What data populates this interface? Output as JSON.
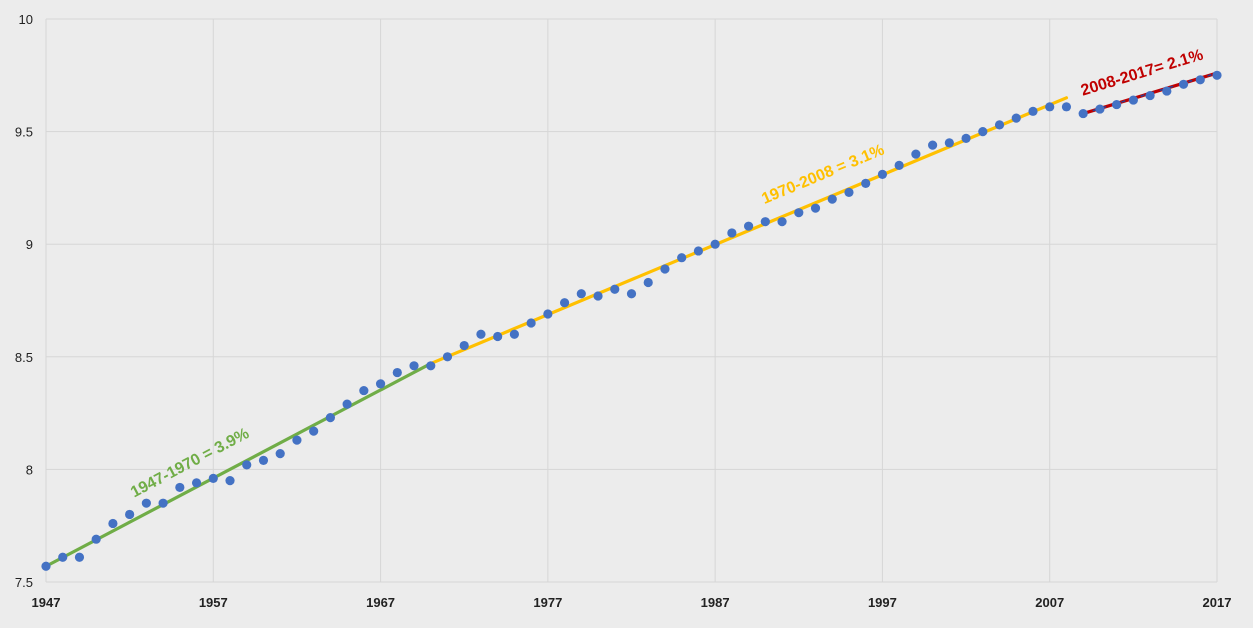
{
  "chart_data": {
    "type": "scatter",
    "title": "",
    "xlabel": "",
    "ylabel": "",
    "xlim": [
      1947,
      2017
    ],
    "ylim": [
      7.5,
      10
    ],
    "x_ticks": [
      1947,
      1957,
      1967,
      1977,
      1987,
      1997,
      2007,
      2017
    ],
    "y_ticks": [
      7.5,
      8,
      8.5,
      9,
      9.5,
      10
    ],
    "y_tick_labels": [
      "7.5",
      "8",
      "8.5",
      "9",
      "9.5",
      "10"
    ],
    "grid": true,
    "series": [
      {
        "color": "#4472c4",
        "x": [
          1947,
          1948,
          1949,
          1950,
          1951,
          1952,
          1953,
          1954,
          1955,
          1956,
          1957,
          1958,
          1959,
          1960,
          1961,
          1962,
          1963,
          1964,
          1965,
          1966,
          1967,
          1968,
          1969,
          1970,
          1971,
          1972,
          1973,
          1974,
          1975,
          1976,
          1977,
          1978,
          1979,
          1980,
          1981,
          1982,
          1983,
          1984,
          1985,
          1986,
          1987,
          1988,
          1989,
          1990,
          1991,
          1992,
          1993,
          1994,
          1995,
          1996,
          1997,
          1998,
          1999,
          2000,
          2001,
          2002,
          2003,
          2004,
          2005,
          2006,
          2007,
          2008,
          2009,
          2010,
          2011,
          2012,
          2013,
          2014,
          2015,
          2016,
          2017
        ],
        "y": [
          7.57,
          7.61,
          7.61,
          7.69,
          7.76,
          7.8,
          7.85,
          7.85,
          7.92,
          7.94,
          7.96,
          7.95,
          8.02,
          8.04,
          8.07,
          8.13,
          8.17,
          8.23,
          8.29,
          8.35,
          8.38,
          8.43,
          8.46,
          8.46,
          8.5,
          8.55,
          8.6,
          8.59,
          8.6,
          8.65,
          8.69,
          8.74,
          8.78,
          8.77,
          8.8,
          8.78,
          8.83,
          8.89,
          8.94,
          8.97,
          9.0,
          9.05,
          9.08,
          9.1,
          9.1,
          9.14,
          9.16,
          9.2,
          9.23,
          9.27,
          9.31,
          9.35,
          9.4,
          9.44,
          9.45,
          9.47,
          9.5,
          9.53,
          9.56,
          9.59,
          9.61,
          9.61,
          9.58,
          9.6,
          9.62,
          9.64,
          9.66,
          9.68,
          9.71,
          9.73,
          9.75
        ]
      }
    ],
    "trendlines": [
      {
        "label": "1947-1970 = 3.9%",
        "color": "#70ad47",
        "x": [
          1947,
          1970
        ],
        "y": [
          7.57,
          8.47
        ]
      },
      {
        "label": "1970-2008 = 3.1%",
        "color": "#ffc000",
        "x": [
          1970,
          2008
        ],
        "y": [
          8.47,
          9.65
        ]
      },
      {
        "label": "2008-2017= 2.1%",
        "color": "#c00000",
        "dashed_color": "#2f3e8f",
        "x": [
          2009,
          2017
        ],
        "y": [
          9.58,
          9.76
        ]
      }
    ]
  }
}
